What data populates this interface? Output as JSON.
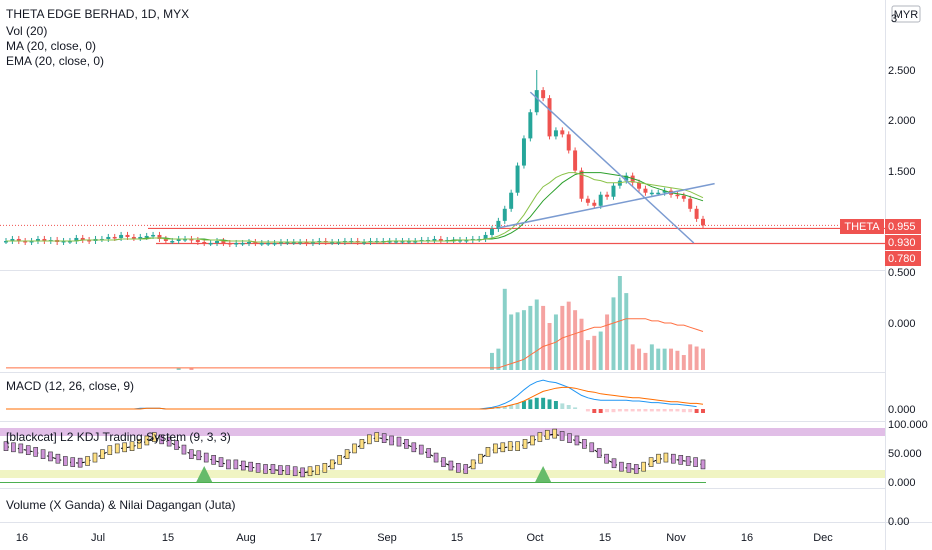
{
  "header": {
    "title": "THETA EDGE BERHAD, 1D, MYX",
    "currency": "MYR",
    "indicators": [
      "Vol (20)",
      "MA (20, close, 0)",
      "EMA (20, close, 0)"
    ]
  },
  "price_axis": {
    "ticks": [
      "3",
      "2.500",
      "2.000",
      "1.500",
      "0.955",
      "0.930",
      "0.780",
      "0.500"
    ],
    "symbol_tag": "THETA",
    "last_price": "0.955",
    "level_930": "0.930",
    "level_780": "0.780"
  },
  "volume_axis": {
    "ticks": [
      "0.000"
    ]
  },
  "macd": {
    "title": "MACD (12, 26, close, 9)",
    "ticks": [
      "0.000"
    ]
  },
  "kdj": {
    "title": "[blackcat] L2 KDJ Trading System (9, 3, 3)",
    "ticks": [
      "100.000",
      "50.000",
      "0.000"
    ]
  },
  "volume_pane": {
    "title": "Volume (X Ganda) & Nilai Dagangan (Juta)",
    "ticks": [
      "0.00"
    ]
  },
  "time_axis": {
    "labels": [
      "16",
      "Jul",
      "15",
      "Aug",
      "17",
      "Sep",
      "15",
      "Oct",
      "15",
      "Nov",
      "16",
      "Dec"
    ]
  },
  "colors": {
    "up": "#26a69a",
    "down": "#ef5350",
    "ma": "#2ca02c",
    "ema": "#1fa64a",
    "macd": "#2196f3",
    "signal": "#ff6d00",
    "trend": "#7b9bd1",
    "kdj_band": "#e1bee7",
    "kdj_low": "#f0f4c3"
  },
  "chart_data": {
    "type": "candlestick",
    "price": {
      "open": [
        0.8,
        0.8,
        0.82,
        0.8,
        0.79,
        0.8,
        0.82,
        0.8,
        0.81,
        0.79,
        0.8,
        0.8,
        0.83,
        0.81,
        0.8,
        0.82,
        0.82,
        0.84,
        0.83,
        0.86,
        0.84,
        0.83,
        0.84,
        0.85,
        0.86,
        0.82,
        0.8,
        0.8,
        0.82,
        0.82,
        0.81,
        0.79,
        0.78,
        0.78,
        0.8,
        0.78,
        0.77,
        0.78,
        0.78,
        0.79,
        0.78,
        0.78,
        0.78,
        0.78,
        0.79,
        0.79,
        0.79,
        0.79,
        0.78,
        0.79,
        0.8,
        0.79,
        0.79,
        0.79,
        0.8,
        0.8,
        0.79,
        0.79,
        0.8,
        0.8,
        0.8,
        0.8,
        0.8,
        0.8,
        0.8,
        0.8,
        0.81,
        0.81,
        0.82,
        0.81,
        0.81,
        0.81,
        0.81,
        0.81,
        0.82,
        0.82,
        0.86,
        0.92,
        1.0,
        1.12,
        1.28,
        1.55,
        1.82,
        2.08,
        2.3,
        2.22,
        1.84,
        1.9,
        1.86,
        1.7,
        1.5,
        1.22,
        1.18,
        1.15,
        1.26,
        1.24,
        1.35,
        1.4,
        1.45,
        1.38,
        1.32,
        1.28,
        1.28,
        1.28,
        1.3,
        1.26,
        1.25,
        1.22,
        1.12,
        1.02
      ],
      "close": [
        0.8,
        0.82,
        0.8,
        0.79,
        0.8,
        0.82,
        0.8,
        0.81,
        0.79,
        0.8,
        0.8,
        0.83,
        0.81,
        0.8,
        0.82,
        0.82,
        0.84,
        0.83,
        0.86,
        0.84,
        0.83,
        0.84,
        0.85,
        0.86,
        0.82,
        0.8,
        0.8,
        0.82,
        0.82,
        0.81,
        0.79,
        0.78,
        0.78,
        0.8,
        0.78,
        0.77,
        0.78,
        0.78,
        0.79,
        0.78,
        0.78,
        0.78,
        0.78,
        0.79,
        0.79,
        0.79,
        0.79,
        0.78,
        0.79,
        0.8,
        0.79,
        0.79,
        0.79,
        0.8,
        0.8,
        0.79,
        0.79,
        0.8,
        0.8,
        0.8,
        0.8,
        0.8,
        0.8,
        0.8,
        0.8,
        0.81,
        0.81,
        0.82,
        0.81,
        0.81,
        0.81,
        0.81,
        0.81,
        0.82,
        0.82,
        0.86,
        0.92,
        1.0,
        1.12,
        1.28,
        1.55,
        1.82,
        2.08,
        2.3,
        2.22,
        1.84,
        1.9,
        1.86,
        1.7,
        1.5,
        1.22,
        1.18,
        1.15,
        1.26,
        1.24,
        1.35,
        1.4,
        1.45,
        1.38,
        1.32,
        1.28,
        1.28,
        1.28,
        1.3,
        1.26,
        1.25,
        1.22,
        1.12,
        1.02,
        0.955
      ],
      "ma": [
        0.8,
        0.8,
        0.8,
        0.8,
        0.8,
        0.8,
        0.8,
        0.8,
        0.8,
        0.8,
        0.8,
        0.8,
        0.81,
        0.81,
        0.81,
        0.81,
        0.81,
        0.81,
        0.82,
        0.82,
        0.82,
        0.82,
        0.83,
        0.83,
        0.83,
        0.83,
        0.82,
        0.82,
        0.82,
        0.82,
        0.82,
        0.82,
        0.81,
        0.81,
        0.81,
        0.8,
        0.8,
        0.8,
        0.8,
        0.79,
        0.79,
        0.79,
        0.79,
        0.79,
        0.79,
        0.79,
        0.79,
        0.79,
        0.79,
        0.79,
        0.79,
        0.79,
        0.79,
        0.79,
        0.79,
        0.79,
        0.79,
        0.79,
        0.79,
        0.79,
        0.8,
        0.8,
        0.8,
        0.8,
        0.8,
        0.8,
        0.8,
        0.8,
        0.8,
        0.8,
        0.81,
        0.81,
        0.81,
        0.81,
        0.81,
        0.82,
        0.82,
        0.83,
        0.85,
        0.88,
        0.92,
        0.98,
        1.04,
        1.12,
        1.2,
        1.26,
        1.32,
        1.38,
        1.42,
        1.46,
        1.48,
        1.48,
        1.48,
        1.48,
        1.47,
        1.46,
        1.45,
        1.44,
        1.42,
        1.4,
        1.37,
        1.34,
        1.32,
        1.3,
        1.28,
        1.27,
        1.26,
        1.24,
        1.22,
        1.2
      ],
      "ema": [
        0.8,
        0.8,
        0.8,
        0.8,
        0.8,
        0.8,
        0.8,
        0.8,
        0.8,
        0.8,
        0.8,
        0.8,
        0.81,
        0.81,
        0.81,
        0.81,
        0.81,
        0.81,
        0.82,
        0.82,
        0.82,
        0.82,
        0.82,
        0.83,
        0.83,
        0.82,
        0.82,
        0.82,
        0.82,
        0.82,
        0.82,
        0.81,
        0.81,
        0.81,
        0.8,
        0.8,
        0.8,
        0.8,
        0.8,
        0.79,
        0.79,
        0.79,
        0.79,
        0.79,
        0.79,
        0.79,
        0.79,
        0.79,
        0.79,
        0.79,
        0.79,
        0.79,
        0.79,
        0.79,
        0.79,
        0.79,
        0.79,
        0.79,
        0.79,
        0.79,
        0.8,
        0.8,
        0.8,
        0.8,
        0.8,
        0.8,
        0.8,
        0.8,
        0.8,
        0.8,
        0.8,
        0.81,
        0.81,
        0.81,
        0.81,
        0.82,
        0.83,
        0.85,
        0.88,
        0.92,
        0.98,
        1.06,
        1.16,
        1.26,
        1.34,
        1.38,
        1.43,
        1.46,
        1.48,
        1.48,
        1.46,
        1.44,
        1.41,
        1.4,
        1.38,
        1.38,
        1.38,
        1.39,
        1.39,
        1.38,
        1.37,
        1.36,
        1.35,
        1.34,
        1.33,
        1.32,
        1.31,
        1.29,
        1.26,
        1.23
      ],
      "levels": [
        0.955,
        0.93,
        0.78
      ],
      "trendline_down": [
        [
          82,
          2.28
        ],
        [
          106,
          0.78
        ]
      ],
      "trendline_up": [
        [
          77,
          0.93
        ],
        [
          108,
          1.37
        ]
      ]
    },
    "volume": {
      "values": [
        0,
        0,
        0,
        0,
        0,
        0,
        0,
        0,
        0,
        0,
        0,
        0,
        0,
        0,
        0,
        0,
        0,
        0,
        0,
        0,
        0,
        0,
        0,
        0,
        0,
        0,
        0,
        1,
        0,
        1,
        0,
        0,
        0,
        0,
        0,
        0,
        0,
        0,
        0,
        0,
        0,
        0,
        0,
        0,
        0,
        0,
        0,
        0,
        0,
        0,
        0,
        0,
        0,
        0,
        0,
        0,
        0,
        0,
        0,
        0,
        0,
        0,
        0,
        0,
        0,
        0,
        0,
        0,
        0,
        0,
        0,
        0,
        0,
        0,
        0,
        0,
        8,
        10,
        38,
        26,
        27,
        28,
        30,
        33,
        30,
        22,
        26,
        30,
        32,
        28,
        24,
        14,
        16,
        18,
        26,
        34,
        44,
        36,
        12,
        10,
        8,
        12,
        10,
        10,
        10,
        9,
        7,
        12,
        11,
        10
      ],
      "up": [
        true,
        true,
        false,
        false,
        true,
        true,
        false,
        true,
        false,
        true,
        true,
        true,
        false,
        false,
        true,
        true,
        true,
        false,
        true,
        false,
        false,
        true,
        true,
        true,
        false,
        false,
        true,
        true,
        true,
        false,
        false,
        false,
        true,
        true,
        false,
        false,
        true,
        true,
        true,
        false,
        true,
        true,
        true,
        true,
        true,
        true,
        true,
        false,
        true,
        true,
        false,
        true,
        true,
        true,
        true,
        false,
        true,
        true,
        true,
        true,
        true,
        true,
        true,
        true,
        true,
        true,
        true,
        true,
        false,
        true,
        true,
        true,
        true,
        true,
        true,
        true,
        true,
        true,
        true,
        true,
        true,
        true,
        true,
        true,
        false,
        false,
        true,
        false,
        false,
        false,
        false,
        false,
        false,
        true,
        false,
        true,
        true,
        true,
        false,
        false,
        false,
        true,
        true,
        true,
        false,
        false,
        false,
        false,
        false,
        false
      ],
      "ma": [
        1,
        1,
        1,
        1,
        1,
        1,
        1,
        1,
        1,
        1,
        1,
        1,
        1,
        1,
        1,
        1,
        1,
        1,
        1,
        1,
        1,
        1,
        1,
        1,
        1,
        1,
        1,
        1,
        1,
        1,
        1,
        1,
        1,
        1,
        1,
        1,
        1,
        1,
        1,
        1,
        1,
        1,
        1,
        1,
        1,
        1,
        1,
        1,
        1,
        1,
        1,
        1,
        1,
        1,
        1,
        1,
        1,
        1,
        1,
        1,
        1,
        1,
        1,
        1,
        1,
        1,
        1,
        1,
        1,
        1,
        1,
        1,
        1,
        1,
        1,
        1,
        1,
        1,
        2,
        3,
        4,
        5,
        7,
        9,
        11,
        12,
        13,
        15,
        16,
        17,
        18,
        19,
        20,
        20,
        21,
        22,
        23,
        24,
        24,
        24,
        24,
        23,
        23,
        22,
        22,
        21,
        21,
        20,
        19,
        18
      ]
    },
    "macd": {
      "hist": [
        0,
        0,
        0,
        0,
        0,
        0,
        0,
        0,
        0,
        0,
        0,
        0,
        0,
        0,
        0,
        0,
        0,
        0,
        0,
        0,
        0,
        0,
        0,
        0,
        0,
        0,
        0,
        0,
        0,
        0,
        0,
        0,
        0,
        0,
        0,
        0,
        0,
        0,
        0,
        0,
        0,
        0,
        0,
        0,
        0,
        0,
        0,
        0,
        0,
        0,
        0,
        0,
        0,
        0,
        0,
        0,
        0,
        0,
        0,
        0,
        0,
        0,
        0,
        0,
        0,
        0,
        0,
        0,
        0,
        0,
        0,
        0,
        0,
        0,
        0,
        0,
        0.01,
        0.02,
        0.03,
        0.05,
        0.07,
        0.1,
        0.12,
        0.14,
        0.14,
        0.12,
        0.1,
        0.07,
        0.05,
        0.02,
        0,
        -0.03,
        -0.05,
        -0.05,
        -0.04,
        -0.04,
        -0.03,
        -0.03,
        -0.03,
        -0.03,
        -0.03,
        -0.03,
        -0.03,
        -0.03,
        -0.03,
        -0.03,
        -0.04,
        -0.04,
        -0.05,
        -0.05
      ],
      "macd": [
        0,
        0,
        0,
        0,
        0,
        0,
        0,
        0,
        0,
        0,
        0,
        0,
        0,
        0,
        0,
        0,
        0,
        0,
        0,
        0,
        0,
        0.01,
        0.01,
        0.01,
        0.01,
        0,
        0,
        0,
        0,
        0,
        0,
        0,
        0,
        0,
        0,
        0,
        0,
        0,
        0,
        0,
        0,
        0,
        0,
        0,
        0,
        0,
        0,
        0,
        0,
        0,
        0,
        0,
        0,
        0,
        0,
        0,
        0,
        0,
        0,
        0,
        0,
        0,
        0,
        0,
        0,
        0,
        0,
        0,
        0,
        0,
        0,
        0,
        0,
        0,
        0,
        0.01,
        0.02,
        0.04,
        0.07,
        0.11,
        0.17,
        0.24,
        0.3,
        0.34,
        0.36,
        0.34,
        0.33,
        0.3,
        0.27,
        0.22,
        0.17,
        0.14,
        0.12,
        0.11,
        0.11,
        0.11,
        0.11,
        0.11,
        0.1,
        0.1,
        0.09,
        0.08,
        0.08,
        0.07,
        0.06,
        0.06,
        0.05,
        0.04,
        0.03
      ],
      "signal": [
        0,
        0,
        0,
        0,
        0,
        0,
        0,
        0,
        0,
        0,
        0,
        0,
        0,
        0,
        0,
        0,
        0,
        0,
        0,
        0,
        0,
        0,
        0.01,
        0.01,
        0.01,
        0,
        0,
        0,
        0,
        0,
        0,
        0,
        0,
        0,
        0,
        0,
        0,
        0,
        0,
        0,
        0,
        0,
        0,
        0,
        0,
        0,
        0,
        0,
        0,
        0,
        0,
        0,
        0,
        0,
        0,
        0,
        0,
        0,
        0,
        0,
        0,
        0,
        0,
        0,
        0,
        0,
        0,
        0,
        0,
        0,
        0,
        0,
        0,
        0,
        0,
        0,
        0.01,
        0.02,
        0.03,
        0.05,
        0.07,
        0.1,
        0.14,
        0.18,
        0.22,
        0.24,
        0.26,
        0.27,
        0.27,
        0.26,
        0.24,
        0.22,
        0.21,
        0.19,
        0.18,
        0.17,
        0.16,
        0.15,
        0.14,
        0.14,
        0.13,
        0.12,
        0.11,
        0.1,
        0.09,
        0.09,
        0.08,
        0.07,
        0.07,
        0.06
      ]
    },
    "kdj": {
      "values": [
        62,
        60,
        58,
        55,
        52,
        48,
        44,
        40,
        36,
        34,
        33,
        36,
        42,
        48,
        55,
        58,
        60,
        62,
        66,
        72,
        78,
        74,
        70,
        64,
        56,
        48,
        46,
        42,
        38,
        34,
        30,
        30,
        28,
        26,
        24,
        22,
        22,
        20,
        20,
        18,
        16,
        18,
        20,
        24,
        30,
        38,
        48,
        58,
        66,
        74,
        78,
        76,
        72,
        70,
        66,
        60,
        56,
        50,
        42,
        34,
        28,
        24,
        22,
        30,
        40,
        52,
        58,
        60,
        62,
        62,
        66,
        72,
        78,
        82,
        84,
        80,
        76,
        72,
        66,
        60,
        50,
        40,
        32,
        26,
        24,
        22,
        26,
        34,
        40,
        42,
        40,
        38,
        36,
        34,
        30
      ],
      "k_up": [
        false,
        false,
        false,
        false,
        false,
        false,
        false,
        false,
        false,
        false,
        false,
        true,
        true,
        true,
        true,
        true,
        true,
        true,
        true,
        true,
        true,
        false,
        false,
        false,
        false,
        false,
        false,
        false,
        false,
        false,
        false,
        false,
        false,
        false,
        false,
        false,
        false,
        false,
        false,
        false,
        false,
        true,
        true,
        true,
        true,
        true,
        true,
        true,
        true,
        true,
        true,
        false,
        false,
        false,
        false,
        false,
        false,
        false,
        false,
        false,
        false,
        false,
        false,
        true,
        true,
        true,
        true,
        true,
        true,
        true,
        true,
        true,
        true,
        true,
        true,
        false,
        false,
        false,
        false,
        false,
        false,
        false,
        false,
        false,
        false,
        false,
        true,
        true,
        true,
        true,
        false,
        false,
        false,
        false,
        false
      ],
      "signals": [
        31,
        84
      ],
      "band_high": 90,
      "band_low": 20
    }
  }
}
